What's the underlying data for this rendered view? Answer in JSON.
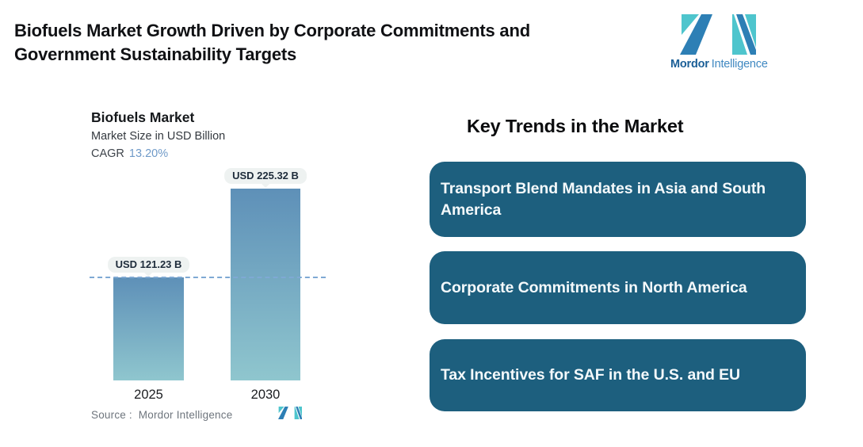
{
  "header": {
    "title_lines": [
      "Biofuels Market Growth Driven by Corporate Commitments and",
      "Government Sustainability Targets"
    ]
  },
  "brand": {
    "name_bold": "Mordor",
    "name_regular": "Intelligence",
    "colors": {
      "blue": "#2d7fb5",
      "teal": "#4ec5cd",
      "text_bold": "#1b5f97",
      "text_regular": "#3f88c1"
    }
  },
  "chart": {
    "title": "Biofuels Market",
    "subtitle": "Market Size in USD Billion",
    "cagr_label": "CAGR",
    "cagr_value": "13.20%",
    "cagr_color": "#6f9ac8",
    "source_label": "Source :",
    "source_value": "Mordor Intelligence"
  },
  "chart_data": {
    "type": "bar",
    "title": "Biofuels Market",
    "ylabel": "Market Size in USD Billion",
    "categories": [
      "2025",
      "2030"
    ],
    "values": [
      121.23,
      225.32
    ],
    "bar_labels": [
      "USD 121.23 B",
      "USD 225.32 B"
    ],
    "cagr_percent": 13.2,
    "reference_line_value": 121.23,
    "ylim": [
      0,
      240
    ],
    "grid": false,
    "legend": false,
    "bar_gradient": [
      "#5e90b8",
      "#8fc6ce"
    ],
    "dashed_line_color": "#7fa9d4"
  },
  "trends": {
    "heading": "Key Trends in the Market",
    "card_bg": "#1d5f7e",
    "cards": [
      {
        "label": "Transport Blend Mandates in Asia and South America"
      },
      {
        "label": "Corporate Commitments in North America"
      },
      {
        "label": "Tax Incentives for SAF in the U.S. and EU"
      }
    ]
  }
}
